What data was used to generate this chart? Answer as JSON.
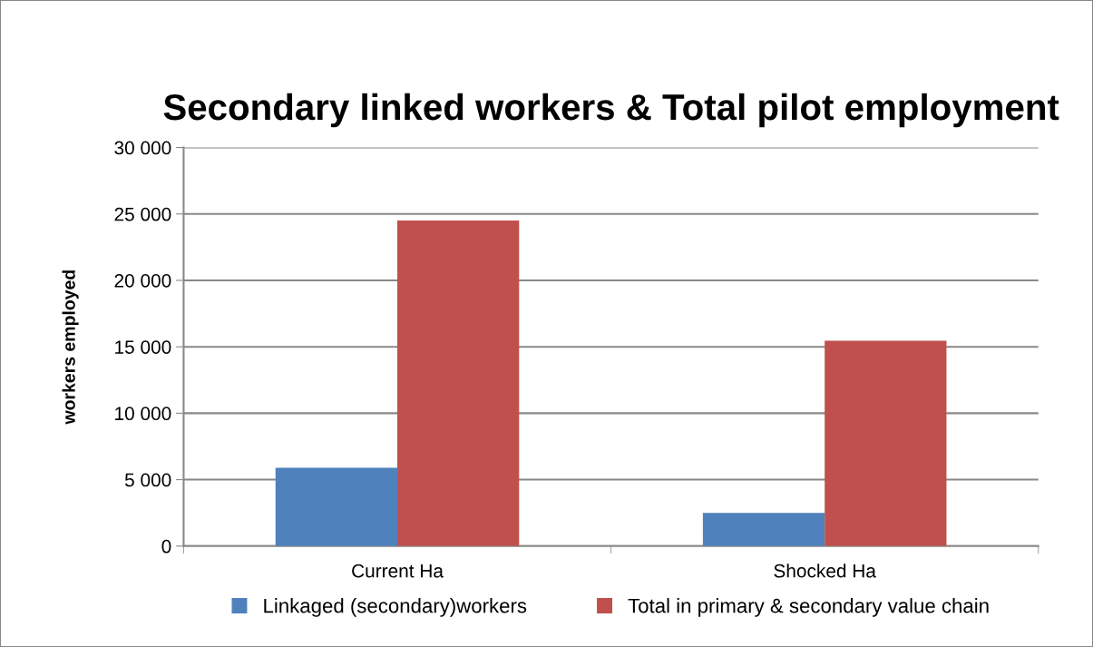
{
  "chart_data": {
    "type": "bar",
    "title": "Secondary linked workers & Total pilot employment",
    "ylabel": "workers employed",
    "categories": [
      "Current Ha",
      "Shocked Ha"
    ],
    "series": [
      {
        "name": "Linkaged (secondary)workers",
        "color": "#4f81bd",
        "values": [
          5900,
          2500
        ]
      },
      {
        "name": "Total in primary & secondary value chain",
        "color": "#c0504d",
        "values": [
          24500,
          15450
        ]
      }
    ],
    "ylim": [
      0,
      30000
    ],
    "yticks": [
      {
        "value": 0,
        "label": "0"
      },
      {
        "value": 5000,
        "label": "5 000"
      },
      {
        "value": 10000,
        "label": "10 000"
      },
      {
        "value": 15000,
        "label": "15 000"
      },
      {
        "value": 20000,
        "label": "20 000"
      },
      {
        "value": 25000,
        "label": "25 000"
      },
      {
        "value": 30000,
        "label": "30 000"
      }
    ],
    "grid": "y",
    "legend": "bottom"
  }
}
